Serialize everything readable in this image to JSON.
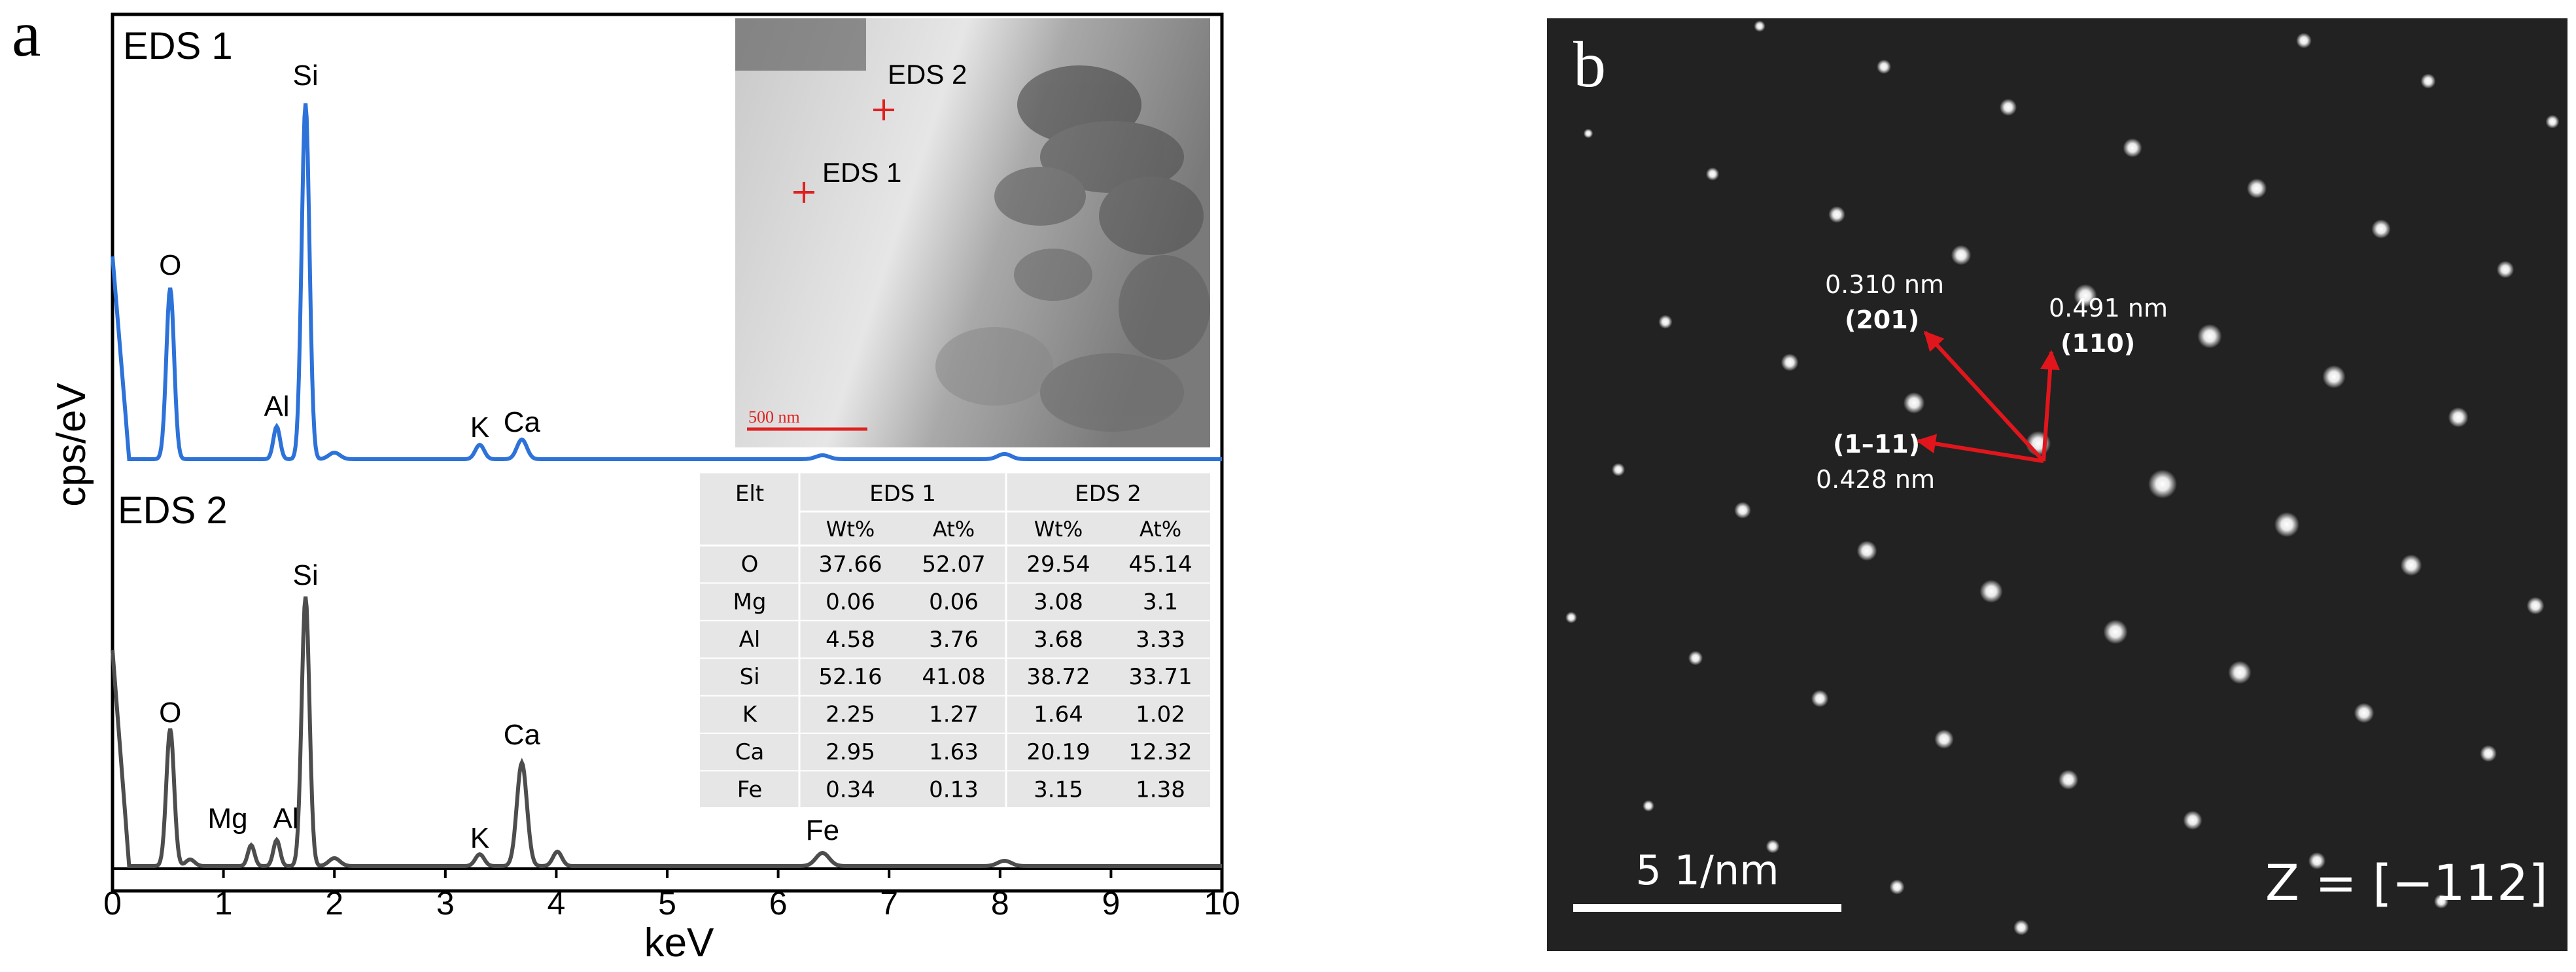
{
  "panel_a": {
    "letter": "a",
    "ylabel": "cps/eV",
    "xlabel": "keV",
    "x_ticks": [
      "0",
      "1",
      "2",
      "3",
      "4",
      "5",
      "6",
      "7",
      "8",
      "9",
      "10"
    ],
    "spectrum1": {
      "title": "EDS 1",
      "color": "#2d72d9",
      "peak_labels": [
        {
          "text": "O",
          "kev": 0.52
        },
        {
          "text": "Al",
          "kev": 1.48
        },
        {
          "text": "Si",
          "kev": 1.74
        },
        {
          "text": "K",
          "kev": 3.31
        },
        {
          "text": "Ca",
          "kev": 3.69
        }
      ]
    },
    "spectrum2": {
      "title": "EDS 2",
      "color": "#4d4d4d",
      "peak_labels": [
        {
          "text": "O",
          "kev": 0.52
        },
        {
          "text": "Mg",
          "kev": 1.25
        },
        {
          "text": "Al",
          "kev": 1.48
        },
        {
          "text": "Si",
          "kev": 1.74
        },
        {
          "text": "K",
          "kev": 3.31
        },
        {
          "text": "Ca",
          "kev": 3.69
        },
        {
          "text": "Fe",
          "kev": 6.4
        }
      ]
    },
    "inset_image": {
      "point1": "EDS 1",
      "point2": "EDS 2",
      "scale_bar": "500 nm"
    },
    "table": {
      "corner": "Elt",
      "group_headers": [
        "EDS 1",
        "EDS 2"
      ],
      "sub_headers": [
        "Wt%",
        "At%",
        "Wt%",
        "At%"
      ],
      "rows": [
        [
          "O",
          "37.66",
          "52.07",
          "29.54",
          "45.14"
        ],
        [
          "Mg",
          "0.06",
          "0.06",
          "3.08",
          "3.1"
        ],
        [
          "Al",
          "4.58",
          "3.76",
          "3.68",
          "3.33"
        ],
        [
          "Si",
          "52.16",
          "41.08",
          "38.72",
          "33.71"
        ],
        [
          "K",
          "2.25",
          "1.27",
          "1.64",
          "1.02"
        ],
        [
          "Ca",
          "2.95",
          "1.63",
          "20.19",
          "12.32"
        ],
        [
          "Fe",
          "0.34",
          "0.13",
          "3.15",
          "1.38"
        ]
      ]
    }
  },
  "panel_b": {
    "letter": "b",
    "spots": [
      {
        "d": "0.310 nm",
        "hkl": "(201)"
      },
      {
        "d": "0.491 nm",
        "hkl": "(110)"
      },
      {
        "d": "0.428 nm",
        "hkl": "(1–11)"
      }
    ],
    "scale_bar": "5 1/nm",
    "zone_axis": "Z = [−112]",
    "arrow_color": "#e0161c"
  }
}
